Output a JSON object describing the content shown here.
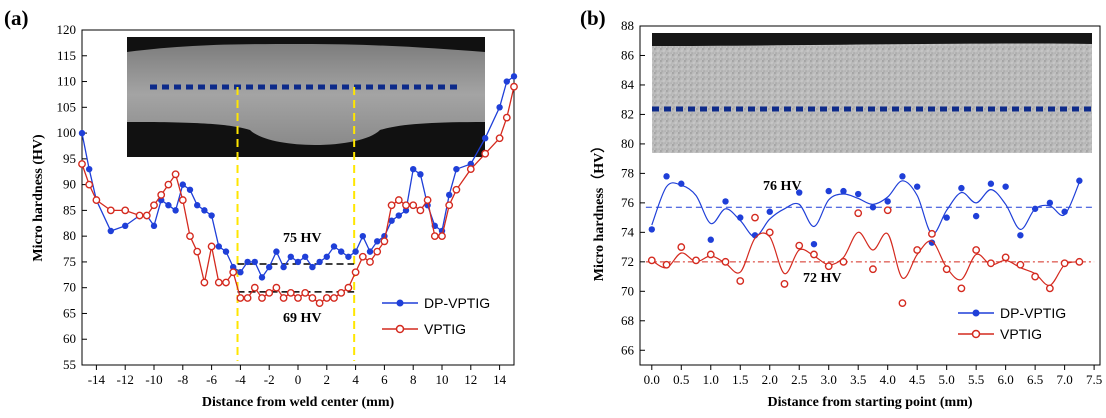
{
  "chart_data": [
    {
      "type": "line",
      "panel_label": "(a)",
      "xlabel": "Distance from weld center (mm)",
      "ylabel": "Micro hardness (HV)",
      "xlim": [
        -15,
        15
      ],
      "ylim": [
        55,
        120
      ],
      "x_ticks": [
        "-14",
        "-12",
        "-10",
        "-8",
        "-6",
        "-4",
        "-2",
        "0",
        "2",
        "4",
        "6",
        "8",
        "10",
        "12",
        "14"
      ],
      "y_ticks": [
        "55",
        "60",
        "65",
        "70",
        "75",
        "80",
        "85",
        "90",
        "95",
        "100",
        "105",
        "110",
        "115",
        "120"
      ],
      "annotations": [
        "75 HV",
        "69 HV"
      ],
      "inset": "weld cross-section micrograph",
      "legend_position": "bottom-right",
      "colors": {
        "DP-VPTIG": "#1f3fd8",
        "VPTIG": "#d42a1f",
        "guide": "#ffe600",
        "section_line": "#0d2a8a"
      },
      "series": [
        {
          "name": "DP-VPTIG",
          "x": [
            -15,
            -14.5,
            -14,
            -13,
            -12,
            -11,
            -10.5,
            -10,
            -9.5,
            -9,
            -8.5,
            -8,
            -7.5,
            -7,
            -6.5,
            -6,
            -5.5,
            -5,
            -4.5,
            -4,
            -3.5,
            -3,
            -2.5,
            -2,
            -1.5,
            -1,
            -0.5,
            0,
            0.5,
            1,
            1.5,
            2,
            2.5,
            3,
            3.5,
            4,
            4.5,
            5,
            5.5,
            6,
            6.5,
            7,
            7.5,
            8,
            8.5,
            9,
            9.5,
            10,
            10.5,
            11,
            12,
            13,
            14,
            14.5,
            15
          ],
          "y": [
            100,
            93,
            87,
            81,
            82,
            84,
            84,
            82,
            87,
            86,
            85,
            90,
            89,
            86,
            85,
            84,
            78,
            77,
            74,
            73,
            75,
            75,
            72,
            74,
            77,
            74,
            76,
            75,
            76,
            74,
            75,
            76,
            78,
            77,
            76,
            77,
            80,
            77,
            79,
            80,
            83,
            84,
            85,
            93,
            92,
            86,
            82,
            81,
            88,
            93,
            94,
            99,
            105,
            110,
            111
          ]
        },
        {
          "name": "VPTIG",
          "x": [
            -15,
            -14.5,
            -14,
            -13,
            -12,
            -11,
            -10.5,
            -10,
            -9.5,
            -9,
            -8.5,
            -8,
            -7.5,
            -7,
            -6.5,
            -6,
            -5.5,
            -5,
            -4.5,
            -4,
            -3.5,
            -3,
            -2.5,
            -2,
            -1.5,
            -1,
            -0.5,
            0,
            0.5,
            1,
            1.5,
            2,
            2.5,
            3,
            3.5,
            4,
            4.5,
            5,
            5.5,
            6,
            6.5,
            7,
            7.5,
            8,
            8.5,
            9,
            9.5,
            10,
            10.5,
            11,
            12,
            13,
            14,
            14.5,
            15
          ],
          "y": [
            94,
            90,
            87,
            85,
            85,
            84,
            84,
            86,
            88,
            90,
            92,
            87,
            80,
            77,
            71,
            78,
            71,
            71,
            73,
            68,
            68,
            70,
            68,
            69,
            70,
            68,
            69,
            68,
            69,
            68,
            67,
            68,
            68,
            69,
            70,
            73,
            76,
            75,
            77,
            79,
            86,
            87,
            86,
            86,
            85,
            87,
            80,
            80,
            86,
            89,
            93,
            96,
            99,
            103,
            109
          ]
        }
      ]
    },
    {
      "type": "line",
      "panel_label": "(b)",
      "xlabel": "Distance from starting  point (mm)",
      "ylabel": "Micro hardness（HV）",
      "xlim": [
        -0.2,
        7.6
      ],
      "ylim": [
        65,
        88
      ],
      "x_ticks": [
        "0.0",
        "0.5",
        "1.0",
        "1.5",
        "2.0",
        "2.5",
        "3.0",
        "3.5",
        "4.0",
        "4.5",
        "5.0",
        "5.5",
        "6.0",
        "6.5",
        "7.0",
        "7.5"
      ],
      "y_ticks": [
        "66",
        "68",
        "70",
        "72",
        "74",
        "76",
        "78",
        "80",
        "82",
        "84",
        "86",
        "88"
      ],
      "annotations": [
        "76 HV",
        "72 HV"
      ],
      "inset": "weld surface micrograph",
      "legend_position": "bottom-right",
      "average_lines": [
        75.7,
        72.0
      ],
      "colors": {
        "DP-VPTIG": "#1f3fd8",
        "VPTIG": "#d42a1f",
        "section_line": "#0d2a8a"
      },
      "series": [
        {
          "name": "DP-VPTIG",
          "points_x": [
            0,
            0.25,
            0.5,
            1.0,
            1.25,
            1.5,
            1.75,
            2.0,
            2.5,
            2.75,
            3.0,
            3.25,
            3.5,
            3.75,
            4.0,
            4.25,
            4.5,
            4.75,
            5.0,
            5.25,
            5.5,
            5.75,
            6.0,
            6.25,
            6.5,
            6.75,
            7.0,
            7.25
          ],
          "points_y": [
            74.2,
            77.8,
            77.3,
            73.5,
            76.1,
            75.0,
            73.8,
            75.4,
            76.7,
            73.2,
            76.8,
            76.8,
            76.6,
            75.7,
            76.1,
            77.8,
            77.1,
            73.3,
            75.0,
            77.0,
            75.1,
            77.3,
            77.1,
            73.8,
            75.6,
            76.0,
            75.4,
            77.5
          ],
          "curve_x": [
            0,
            0.25,
            0.5,
            0.75,
            1.0,
            1.25,
            1.5,
            1.75,
            2.0,
            2.25,
            2.5,
            2.75,
            3.0,
            3.25,
            3.5,
            3.75,
            4.0,
            4.25,
            4.5,
            4.75,
            5.0,
            5.25,
            5.5,
            5.75,
            6.0,
            6.25,
            6.5,
            6.75,
            7.0,
            7.25
          ],
          "curve_y": [
            74.5,
            77.1,
            77.2,
            76.5,
            74.6,
            75.6,
            74.8,
            73.7,
            74.9,
            75.6,
            75.9,
            74.4,
            76.2,
            76.6,
            76.3,
            75.9,
            76.4,
            77.5,
            76.5,
            73.9,
            75.5,
            76.7,
            76.0,
            76.9,
            75.9,
            74.2,
            75.6,
            75.8,
            75.2,
            77.4
          ]
        },
        {
          "name": "VPTIG",
          "points_x": [
            0,
            0.25,
            0.5,
            0.75,
            1.0,
            1.25,
            1.5,
            1.75,
            2.0,
            2.25,
            2.5,
            2.75,
            3.0,
            3.25,
            3.5,
            3.75,
            4.0,
            4.25,
            4.5,
            4.75,
            5.0,
            5.25,
            5.5,
            5.75,
            6.0,
            6.25,
            6.5,
            6.75,
            7.0,
            7.25
          ],
          "points_y": [
            72.1,
            71.8,
            73.0,
            72.1,
            72.5,
            72.0,
            70.7,
            75.0,
            74.0,
            70.5,
            73.1,
            72.5,
            71.7,
            72.0,
            75.3,
            71.5,
            75.5,
            69.2,
            72.8,
            73.9,
            71.5,
            70.2,
            72.8,
            71.9,
            72.3,
            71.8,
            71.0,
            70.2,
            71.9,
            72.0
          ],
          "curve_x": [
            0,
            0.25,
            0.5,
            0.75,
            1.0,
            1.25,
            1.5,
            1.75,
            2.0,
            2.25,
            2.5,
            2.75,
            3.0,
            3.25,
            3.5,
            3.75,
            4.0,
            4.25,
            4.5,
            4.75,
            5.0,
            5.25,
            5.5,
            5.75,
            6.0,
            6.25,
            6.5,
            6.75,
            7.0,
            7.25
          ],
          "curve_y": [
            72.1,
            71.6,
            72.6,
            72.0,
            72.4,
            71.9,
            71.3,
            73.6,
            73.7,
            71.2,
            72.8,
            72.4,
            71.8,
            72.3,
            74.0,
            72.8,
            73.9,
            70.9,
            72.5,
            73.4,
            71.6,
            70.8,
            72.5,
            71.8,
            72.1,
            71.6,
            71.2,
            70.4,
            71.8,
            72.0
          ]
        }
      ]
    }
  ]
}
